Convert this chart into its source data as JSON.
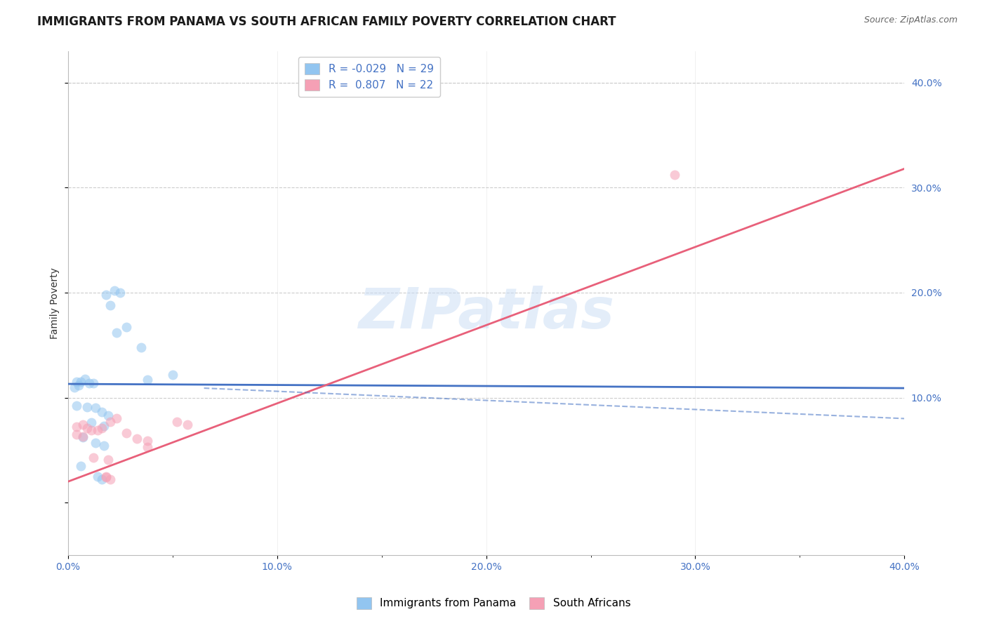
{
  "title": "IMMIGRANTS FROM PANAMA VS SOUTH AFRICAN FAMILY POVERTY CORRELATION CHART",
  "source": "Source: ZipAtlas.com",
  "ylabel": "Family Poverty",
  "xlim": [
    0.0,
    0.4
  ],
  "ylim": [
    -0.05,
    0.43
  ],
  "xtick_labels": [
    "0.0%",
    "",
    "10.0%",
    "",
    "20.0%",
    "",
    "30.0%",
    "",
    "40.0%"
  ],
  "xtick_vals": [
    0.0,
    0.05,
    0.1,
    0.15,
    0.2,
    0.25,
    0.3,
    0.35,
    0.4
  ],
  "ytick_labels_right": [
    "40.0%",
    "30.0%",
    "20.0%",
    "10.0%"
  ],
  "ytick_vals_right": [
    0.4,
    0.3,
    0.2,
    0.1
  ],
  "legend_labels": [
    "Immigrants from Panama",
    "South Africans"
  ],
  "legend_r": [
    "R = -0.029",
    "R =  0.807"
  ],
  "legend_n": [
    "N = 29",
    "N = 22"
  ],
  "watermark": "ZIPatlas",
  "blue_color": "#92C5F0",
  "pink_color": "#F5A0B5",
  "blue_line_color": "#4472C4",
  "pink_line_color": "#E8607A",
  "blue_scatter": [
    [
      0.004,
      0.115
    ],
    [
      0.006,
      0.115
    ],
    [
      0.008,
      0.118
    ],
    [
      0.01,
      0.114
    ],
    [
      0.012,
      0.114
    ],
    [
      0.005,
      0.112
    ],
    [
      0.003,
      0.11
    ],
    [
      0.018,
      0.198
    ],
    [
      0.022,
      0.202
    ],
    [
      0.025,
      0.2
    ],
    [
      0.02,
      0.188
    ],
    [
      0.023,
      0.162
    ],
    [
      0.028,
      0.167
    ],
    [
      0.035,
      0.148
    ],
    [
      0.038,
      0.117
    ],
    [
      0.05,
      0.122
    ],
    [
      0.004,
      0.092
    ],
    [
      0.009,
      0.091
    ],
    [
      0.013,
      0.09
    ],
    [
      0.016,
      0.086
    ],
    [
      0.019,
      0.083
    ],
    [
      0.011,
      0.076
    ],
    [
      0.017,
      0.073
    ],
    [
      0.007,
      0.062
    ],
    [
      0.013,
      0.057
    ],
    [
      0.017,
      0.054
    ],
    [
      0.006,
      0.035
    ],
    [
      0.014,
      0.025
    ],
    [
      0.016,
      0.022
    ]
  ],
  "pink_scatter": [
    [
      0.004,
      0.072
    ],
    [
      0.007,
      0.074
    ],
    [
      0.009,
      0.071
    ],
    [
      0.011,
      0.069
    ],
    [
      0.014,
      0.069
    ],
    [
      0.016,
      0.071
    ],
    [
      0.004,
      0.065
    ],
    [
      0.007,
      0.063
    ],
    [
      0.02,
      0.077
    ],
    [
      0.023,
      0.08
    ],
    [
      0.028,
      0.066
    ],
    [
      0.033,
      0.061
    ],
    [
      0.038,
      0.059
    ],
    [
      0.038,
      0.053
    ],
    [
      0.052,
      0.077
    ],
    [
      0.057,
      0.074
    ],
    [
      0.012,
      0.043
    ],
    [
      0.019,
      0.041
    ],
    [
      0.018,
      0.025
    ],
    [
      0.02,
      0.022
    ],
    [
      0.018,
      0.024
    ],
    [
      0.29,
      0.312
    ]
  ],
  "blue_line": {
    "x0": 0.0,
    "x1": 0.4,
    "y0": 0.113,
    "y1": 0.109
  },
  "pink_line": {
    "x0": 0.0,
    "x1": 0.4,
    "y0": 0.02,
    "y1": 0.318
  },
  "blue_dash_line": {
    "x0": 0.065,
    "x1": 0.4,
    "y0": 0.109,
    "y1": 0.08
  },
  "grid_color": "#CCCCCC",
  "grid_linestyle": "--",
  "bg_color": "#FFFFFF",
  "title_fontsize": 12,
  "axis_label_fontsize": 10,
  "tick_fontsize": 10,
  "scatter_size": 100,
  "scatter_alpha": 0.55
}
